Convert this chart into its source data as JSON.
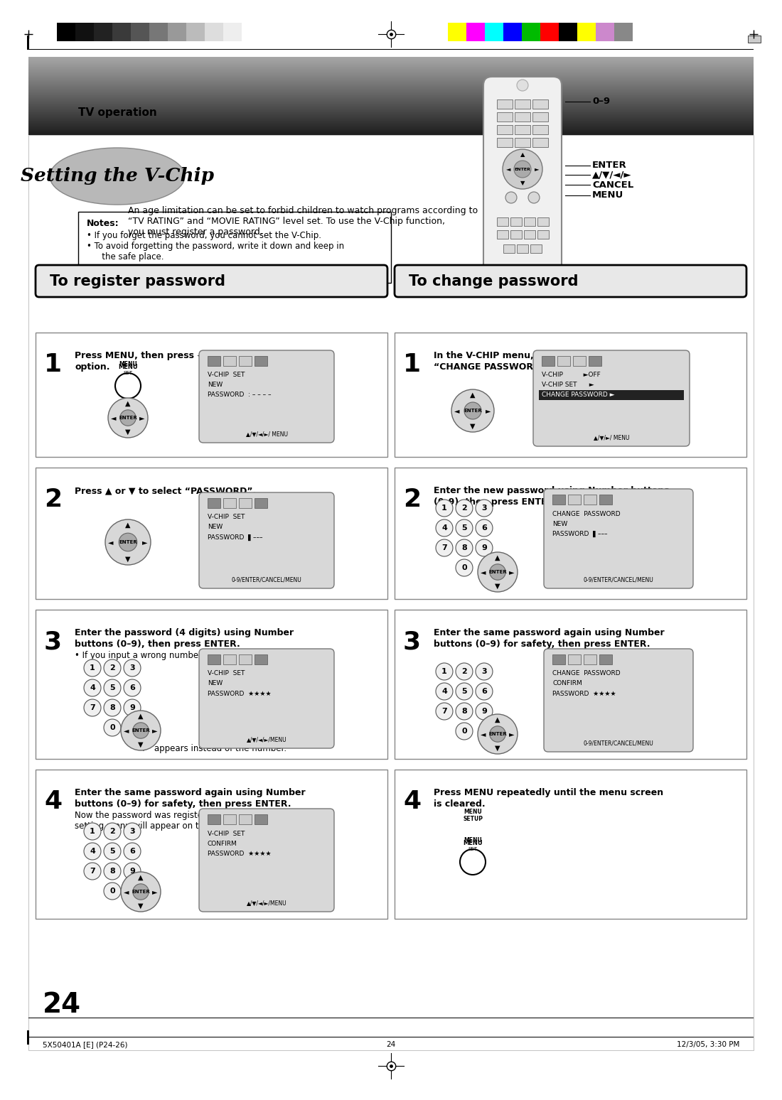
{
  "bg_color": "#ffffff",
  "header_text": "TV operation",
  "title_text": "Setting the V-Chip",
  "intro_text": "An age limitation can be set to forbid children to watch programs according to\n“TV RATING” and “MOVIE RATING” level set. To use the V-Chip function,\nyou must register a password.",
  "notes_title": "Notes:",
  "note1": "If you forget the password, you cannot set the V-Chip.",
  "note2": "To avoid forgetting the password, write it down and keep in",
  "note2b": "   the safe place.",
  "section_left": "To register password",
  "section_right": "To change password",
  "left_steps": [
    {
      "num": "1",
      "text1": "Press MENU, then press ◄ or ► to select ",
      "text2": "option.",
      "screen_lines": [
        "V-CHIP  SET",
        "NEW",
        "PASSWORD  : – – – –"
      ],
      "bottom": "▲/▼/◄/►/ MENU",
      "has_menu_btn": true,
      "has_dir_pad": true
    },
    {
      "num": "2",
      "text1": "Press ▲ or ▼ to select “PASSWORD”.",
      "screen_lines": [
        "V-CHIP  SET",
        "NEW",
        "PASSWORD"
      ],
      "bottom": "0-9/ENTER/CANCEL/MENU",
      "has_dir_pad": true
    },
    {
      "num": "3",
      "text1": "Enter the password (4 digits) using Number",
      "text2": "buttons (0–9), then press ENTER.",
      "sub": "• If you input a wrong number, press CANCEL.",
      "screen_lines": [
        "V-CHIP  SET",
        "NEW",
        "PASSWORD  ★★★★"
      ],
      "bottom": "▲/▼/◄/►/MENU",
      "star_note": "“∗” appears instead of the number.",
      "has_numpad": true,
      "has_dir_pad": true
    },
    {
      "num": "4",
      "text1": "Enter the same password again using Number",
      "text2": "buttons (0–9) for safety, then press ENTER.",
      "sub1": "Now the password was registered and V-Chip",
      "sub2": "setting menu will appear on the display.",
      "screen_lines": [
        "V-CHIP  SET",
        "CONFIRM",
        "PASSWORD  ★★★★"
      ],
      "bottom": "▲/▼/◄/►/MENU",
      "has_numpad": true,
      "has_dir_pad": true
    }
  ],
  "right_steps": [
    {
      "num": "1",
      "text1": "In the V-CHIP menu, press ▲ or ▼ to select",
      "text2": "“CHANGE PASSWORD”, then press ►.",
      "screen_lines": [
        "V-CHIP          ►OFF",
        "V-CHIP SET      ►",
        "CHANGE PASSWORD ►"
      ],
      "highlight": 2,
      "bottom": "▲/▼/►/ MENU",
      "has_dir_pad": true
    },
    {
      "num": "2",
      "text1": "Enter the new password using Number buttons",
      "text2": "(0–9), then press ENTER.",
      "screen_lines": [
        "CHANGE  PASSWORD",
        "NEW",
        "PASSWORD"
      ],
      "bottom": "0-9/ENTER/CANCEL/MENU",
      "has_numpad": true,
      "has_dir_pad": true
    },
    {
      "num": "3",
      "text1": "Enter the same password again using Number",
      "text2": "buttons (0–9) for safety, then press ENTER.",
      "screen_lines": [
        "CHANGE  PASSWORD",
        "CONFIRM",
        "PASSWORD  ★★★★"
      ],
      "bottom": "0-9/ENTER/CANCEL/MENU",
      "has_numpad": true,
      "has_dir_pad": true
    },
    {
      "num": "4",
      "text1": "Press MENU repeatedly until the menu screen",
      "text2": "is cleared.",
      "has_menu_only": true
    }
  ],
  "page_number": "24",
  "footer_left": "5X50401A [E] (P24-26)",
  "footer_center": "24",
  "footer_right": "12/3/05, 3:30 PM",
  "gray_bars": [
    "#000000",
    "#111111",
    "#222222",
    "#3a3a3a",
    "#555555",
    "#777777",
    "#999999",
    "#bbbbbb",
    "#dddddd",
    "#eeeeee",
    "#ffffff"
  ],
  "color_bars": [
    "#ffff00",
    "#ff00ff",
    "#00ffff",
    "#0000ff",
    "#00bb00",
    "#ff0000",
    "#000000",
    "#ffff00",
    "#cc88cc",
    "#888888"
  ]
}
